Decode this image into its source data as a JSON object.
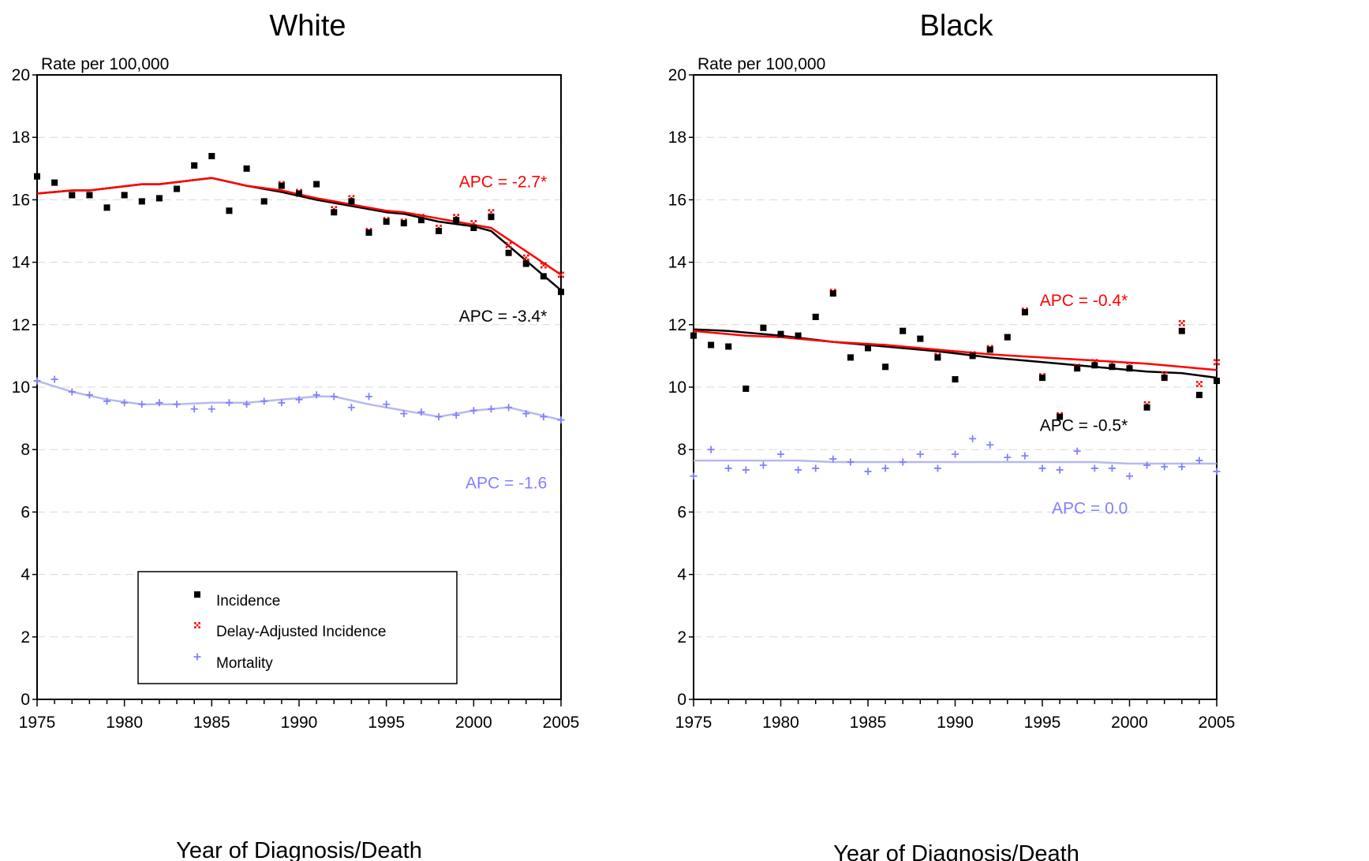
{
  "colors": {
    "incidence": "#000000",
    "delay_adjusted": "#ff0000",
    "mortality": "#8080ff",
    "mortality_fit": "#b8b8f0",
    "grid": "#d8d8d8"
  },
  "legend": {
    "items": [
      {
        "label": "Incidence",
        "marker": "square",
        "color": "#000000"
      },
      {
        "label": "Delay-Adjusted Incidence",
        "marker": "checker",
        "color": "#ff0000"
      },
      {
        "label": "Mortality",
        "marker": "plus",
        "color": "#8080ff"
      }
    ]
  },
  "chart_data": [
    {
      "type": "scatter",
      "title": "White",
      "xlabel": "Year of Diagnosis/Death",
      "ylabel": "Rate per 100,000",
      "xlim": [
        1975,
        2005
      ],
      "ylim": [
        0,
        20
      ],
      "xticks": [
        1975,
        1980,
        1985,
        1990,
        1995,
        2000,
        2005
      ],
      "yticks": [
        0,
        2,
        4,
        6,
        8,
        10,
        12,
        14,
        16,
        18,
        20
      ],
      "grid": true,
      "legend_position": "bottom-left",
      "years": [
        1975,
        1976,
        1977,
        1978,
        1979,
        1980,
        1981,
        1982,
        1983,
        1984,
        1985,
        1986,
        1987,
        1988,
        1989,
        1990,
        1991,
        1992,
        1993,
        1994,
        1995,
        1996,
        1997,
        1998,
        1999,
        2000,
        2001,
        2002,
        2003,
        2004,
        2005
      ],
      "series": [
        {
          "name": "Incidence",
          "role": "incidence",
          "values": [
            16.75,
            16.55,
            16.15,
            16.15,
            15.75,
            16.15,
            15.95,
            16.05,
            16.35,
            17.1,
            17.4,
            15.65,
            17.0,
            15.95,
            16.45,
            16.2,
            16.5,
            15.6,
            15.95,
            14.95,
            15.3,
            15.25,
            15.35,
            15.0,
            15.35,
            15.1,
            15.45,
            14.3,
            13.95,
            13.55,
            13.05
          ]
        },
        {
          "name": "Delay-Adjusted Incidence",
          "role": "delay_adjusted",
          "values": [
            16.75,
            16.55,
            16.15,
            16.15,
            15.75,
            16.15,
            15.95,
            16.05,
            16.35,
            17.1,
            17.4,
            15.65,
            17.0,
            15.95,
            16.5,
            16.25,
            16.5,
            15.7,
            16.05,
            15.0,
            15.35,
            15.3,
            15.45,
            15.1,
            15.45,
            15.25,
            15.6,
            14.55,
            14.15,
            13.9,
            13.6
          ]
        },
        {
          "name": "Mortality",
          "role": "mortality",
          "values": [
            10.2,
            10.25,
            9.85,
            9.75,
            9.55,
            9.5,
            9.45,
            9.5,
            9.45,
            9.3,
            9.3,
            9.5,
            9.45,
            9.55,
            9.5,
            9.6,
            9.75,
            9.7,
            9.35,
            9.7,
            9.45,
            9.15,
            9.2,
            9.05,
            9.1,
            9.25,
            9.3,
            9.35,
            9.15,
            9.05,
            8.95
          ]
        }
      ],
      "fits": [
        {
          "role": "incidence",
          "points": [
            [
              1975,
              16.2
            ],
            [
              1977,
              16.3
            ],
            [
              1978,
              16.3
            ],
            [
              1981,
              16.5
            ],
            [
              1982,
              16.5
            ],
            [
              1985,
              16.7
            ],
            [
              1987,
              16.45
            ],
            [
              1989,
              16.25
            ],
            [
              1991,
              16.0
            ],
            [
              1993,
              15.8
            ],
            [
              1995,
              15.6
            ],
            [
              1996,
              15.55
            ],
            [
              1998,
              15.3
            ],
            [
              2000,
              15.15
            ],
            [
              2001,
              15.0
            ],
            [
              2005,
              13.1
            ]
          ]
        },
        {
          "role": "delay_adjusted",
          "points": [
            [
              1975,
              16.2
            ],
            [
              1977,
              16.3
            ],
            [
              1978,
              16.3
            ],
            [
              1981,
              16.5
            ],
            [
              1982,
              16.5
            ],
            [
              1985,
              16.7
            ],
            [
              1987,
              16.45
            ],
            [
              1989,
              16.3
            ],
            [
              1991,
              16.05
            ],
            [
              1993,
              15.85
            ],
            [
              1995,
              15.65
            ],
            [
              1996,
              15.6
            ],
            [
              1998,
              15.4
            ],
            [
              2000,
              15.2
            ],
            [
              2001,
              15.1
            ],
            [
              2005,
              13.6
            ]
          ]
        },
        {
          "role": "mortality",
          "points": [
            [
              1975,
              10.2
            ],
            [
              1977,
              9.85
            ],
            [
              1979,
              9.6
            ],
            [
              1981,
              9.45
            ],
            [
              1983,
              9.45
            ],
            [
              1985,
              9.5
            ],
            [
              1987,
              9.5
            ],
            [
              1989,
              9.6
            ],
            [
              1991,
              9.7
            ],
            [
              1992,
              9.7
            ],
            [
              1994,
              9.45
            ],
            [
              1996,
              9.25
            ],
            [
              1998,
              9.05
            ],
            [
              2000,
              9.25
            ],
            [
              2002,
              9.35
            ],
            [
              2005,
              8.95
            ]
          ]
        }
      ],
      "annotations": [
        {
          "text": "APC = -2.7*",
          "role": "delay_adjusted",
          "x": 2004.2,
          "y": 16.4
        },
        {
          "text": "APC = -3.4*",
          "role": "incidence",
          "x": 2004.2,
          "y": 12.1
        },
        {
          "text": "APC = -1.6",
          "role": "mortality",
          "x": 2004.2,
          "y": 6.75
        }
      ]
    },
    {
      "type": "scatter",
      "title": "Black",
      "xlabel": "Year of Diagnosis/Death",
      "ylabel": "Rate per 100,000",
      "xlim": [
        1975,
        2005
      ],
      "ylim": [
        0,
        20
      ],
      "xticks": [
        1975,
        1980,
        1985,
        1990,
        1995,
        2000,
        2005
      ],
      "yticks": [
        0,
        2,
        4,
        6,
        8,
        10,
        12,
        14,
        16,
        18,
        20
      ],
      "grid": true,
      "years": [
        1975,
        1976,
        1977,
        1978,
        1979,
        1980,
        1981,
        1982,
        1983,
        1984,
        1985,
        1986,
        1987,
        1988,
        1989,
        1990,
        1991,
        1992,
        1993,
        1994,
        1995,
        1996,
        1997,
        1998,
        1999,
        2000,
        2001,
        2002,
        2003,
        2004,
        2005
      ],
      "series": [
        {
          "name": "Incidence",
          "role": "incidence",
          "values": [
            11.65,
            11.35,
            11.3,
            9.95,
            11.9,
            11.7,
            11.65,
            12.25,
            13.0,
            10.95,
            11.25,
            10.65,
            11.8,
            11.55,
            10.95,
            10.25,
            11.0,
            11.2,
            11.6,
            12.4,
            10.3,
            9.05,
            10.6,
            10.7,
            10.65,
            10.6,
            9.35,
            10.3,
            11.8,
            9.75,
            10.2
          ]
        },
        {
          "name": "Delay-Adjusted Incidence",
          "role": "delay_adjusted",
          "values": [
            11.65,
            11.35,
            11.3,
            9.95,
            11.9,
            11.7,
            11.65,
            12.25,
            13.05,
            10.95,
            11.3,
            10.65,
            11.8,
            11.55,
            11.0,
            10.25,
            11.05,
            11.25,
            11.6,
            12.45,
            10.35,
            9.1,
            10.65,
            10.8,
            10.75,
            10.7,
            9.45,
            10.4,
            12.05,
            10.1,
            10.8
          ]
        },
        {
          "name": "Mortality",
          "role": "mortality",
          "values": [
            7.15,
            8.0,
            7.4,
            7.35,
            7.5,
            7.85,
            7.35,
            7.4,
            7.7,
            7.6,
            7.3,
            7.4,
            7.6,
            7.85,
            7.4,
            7.85,
            8.35,
            8.15,
            7.75,
            7.8,
            7.4,
            7.35,
            7.95,
            7.4,
            7.4,
            7.15,
            7.5,
            7.45,
            7.45,
            7.65,
            7.3
          ]
        }
      ],
      "fits": [
        {
          "role": "incidence",
          "points": [
            [
              1975,
              11.85
            ],
            [
              1977,
              11.8
            ],
            [
              1980,
              11.65
            ],
            [
              1983,
              11.45
            ],
            [
              1986,
              11.3
            ],
            [
              1989,
              11.15
            ],
            [
              1992,
              10.95
            ],
            [
              1995,
              10.8
            ],
            [
              1998,
              10.65
            ],
            [
              2001,
              10.5
            ],
            [
              2003,
              10.45
            ],
            [
              2005,
              10.3
            ]
          ]
        },
        {
          "role": "delay_adjusted",
          "points": [
            [
              1975,
              11.8
            ],
            [
              1978,
              11.65
            ],
            [
              1980,
              11.6
            ],
            [
              1983,
              11.45
            ],
            [
              1986,
              11.35
            ],
            [
              1989,
              11.2
            ],
            [
              1992,
              11.05
            ],
            [
              1995,
              10.95
            ],
            [
              1998,
              10.85
            ],
            [
              2001,
              10.75
            ],
            [
              2003,
              10.65
            ],
            [
              2005,
              10.55
            ]
          ]
        },
        {
          "role": "mortality",
          "points": [
            [
              1975,
              7.65
            ],
            [
              1981,
              7.65
            ],
            [
              1983,
              7.6
            ],
            [
              1998,
              7.6
            ],
            [
              2000,
              7.55
            ],
            [
              2005,
              7.55
            ]
          ]
        }
      ],
      "annotations": [
        {
          "text": "APC = -0.4*",
          "role": "delay_adjusted",
          "x": 1999.9,
          "y": 12.6
        },
        {
          "text": "APC = -0.5*",
          "role": "incidence",
          "x": 1999.9,
          "y": 8.6
        },
        {
          "text": "APC =  0.0",
          "role": "mortality",
          "x": 1999.9,
          "y": 5.95
        }
      ]
    }
  ]
}
